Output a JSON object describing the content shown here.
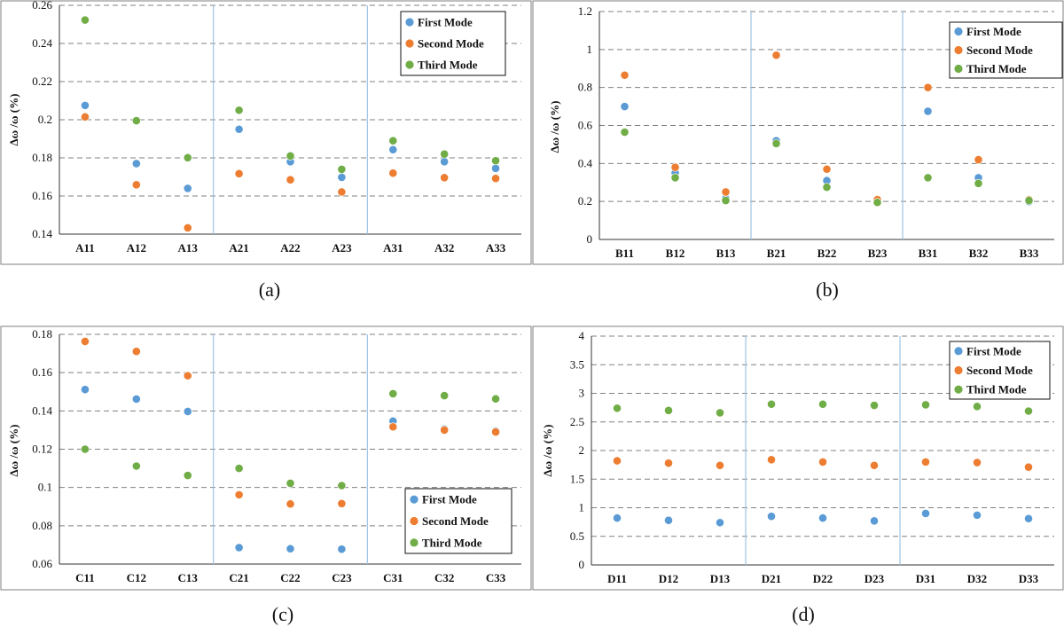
{
  "colors": {
    "first": "#5b9bd5",
    "second": "#ed7d31",
    "third": "#70ad47",
    "separator": "#9dc3e6",
    "grid": "#808080"
  },
  "y_axis_label": "Δω /ω (%)",
  "legend_labels": [
    "First Mode",
    "Second Mode",
    "Third Mode"
  ],
  "chart_data": [
    {
      "type": "scatter",
      "panel": "(a)",
      "ylabel": "Δω /ω (%)",
      "categories": [
        "A11",
        "A12",
        "A13",
        "A21",
        "A22",
        "A23",
        "A31",
        "A32",
        "A33"
      ],
      "ylim": [
        0.14,
        0.26
      ],
      "yticks": [
        0.14,
        0.16,
        0.18,
        0.2,
        0.22,
        0.24,
        0.26
      ],
      "ytick_labels": [
        "0.14",
        "0.16",
        "0.18",
        "0.2",
        "0.22",
        "0.24",
        "0.26"
      ],
      "group_separators_after": [
        3,
        6
      ],
      "legend_position": "top-right",
      "series": [
        {
          "name": "First Mode",
          "values": [
            0.2075,
            0.177,
            0.164,
            0.195,
            0.178,
            0.1698,
            0.1843,
            0.178,
            0.1745
          ]
        },
        {
          "name": "Second Mode",
          "values": [
            0.2015,
            0.1659,
            0.1433,
            0.1717,
            0.1685,
            0.1621,
            0.172,
            0.1696,
            0.1692
          ]
        },
        {
          "name": "Third Mode",
          "values": [
            0.2523,
            0.1995,
            0.1801,
            0.205,
            0.181,
            0.174,
            0.189,
            0.182,
            0.1785
          ]
        }
      ]
    },
    {
      "type": "scatter",
      "panel": "(b)",
      "ylabel": "Δω /ω (%)",
      "categories": [
        "B11",
        "B12",
        "B13",
        "B21",
        "B22",
        "B23",
        "B31",
        "B32",
        "B33"
      ],
      "ylim": [
        0,
        1.2
      ],
      "yticks": [
        0,
        0.2,
        0.4,
        0.6,
        0.8,
        1,
        1.2
      ],
      "ytick_labels": [
        "0",
        "0.2",
        "0.4",
        "0.6",
        "0.8",
        "1",
        "1.2"
      ],
      "group_separators_after": [
        3,
        6
      ],
      "legend_position": "top-right",
      "series": [
        {
          "name": "First Mode",
          "values": [
            0.7,
            0.35,
            0.215,
            0.52,
            0.31,
            0.2,
            0.675,
            0.325,
            0.2
          ]
        },
        {
          "name": "Second Mode",
          "values": [
            0.865,
            0.38,
            0.25,
            0.97,
            0.37,
            0.21,
            0.8,
            0.42,
            0.21
          ]
        },
        {
          "name": "Third Mode",
          "values": [
            0.565,
            0.325,
            0.205,
            0.505,
            0.275,
            0.195,
            0.325,
            0.295,
            0.205
          ]
        }
      ]
    },
    {
      "type": "scatter",
      "panel": "(c)",
      "ylabel": "Δω /ω (%)",
      "categories": [
        "C11",
        "C12",
        "C13",
        "C21",
        "C22",
        "C23",
        "C31",
        "C32",
        "C33"
      ],
      "ylim": [
        0.06,
        0.18
      ],
      "yticks": [
        0.06,
        0.08,
        0.1,
        0.12,
        0.14,
        0.16,
        0.18
      ],
      "ytick_labels": [
        "0.06",
        "0.08",
        "0.1",
        "0.12",
        "0.14",
        "0.16",
        "0.18"
      ],
      "group_separators_after": [
        3,
        6
      ],
      "legend_position": "bottom-right",
      "series": [
        {
          "name": "First Mode",
          "values": [
            0.1512,
            0.1462,
            0.1397,
            0.0686,
            0.068,
            0.0678,
            0.1347,
            0.1305,
            0.1295
          ]
        },
        {
          "name": "Second Mode",
          "values": [
            0.1763,
            0.1711,
            0.1584,
            0.0962,
            0.0914,
            0.0916,
            0.1317,
            0.13,
            0.129
          ]
        },
        {
          "name": "Third Mode",
          "values": [
            0.12,
            0.1112,
            0.1063,
            0.11,
            0.1022,
            0.101,
            0.149,
            0.148,
            0.1463
          ]
        }
      ]
    },
    {
      "type": "scatter",
      "panel": "(d)",
      "ylabel": "Δω /ω (%)",
      "categories": [
        "D11",
        "D12",
        "D13",
        "D21",
        "D22",
        "D23",
        "D31",
        "D32",
        "D33"
      ],
      "ylim": [
        0,
        4
      ],
      "yticks": [
        0,
        0.5,
        1,
        1.5,
        2,
        2.5,
        3,
        3.5,
        4
      ],
      "ytick_labels": [
        "0",
        "0.5",
        "1",
        "1.5",
        "2",
        "2.5",
        "3",
        "3.5",
        "4"
      ],
      "group_separators_after": [
        3,
        6
      ],
      "legend_position": "top-right",
      "series": [
        {
          "name": "First Mode",
          "values": [
            0.82,
            0.78,
            0.74,
            0.85,
            0.82,
            0.77,
            0.9,
            0.87,
            0.81
          ]
        },
        {
          "name": "Second Mode",
          "values": [
            1.82,
            1.78,
            1.74,
            1.84,
            1.8,
            1.74,
            1.8,
            1.79,
            1.71
          ]
        },
        {
          "name": "Third Mode",
          "values": [
            2.74,
            2.7,
            2.66,
            2.81,
            2.81,
            2.79,
            2.8,
            2.77,
            2.69
          ]
        }
      ]
    }
  ]
}
